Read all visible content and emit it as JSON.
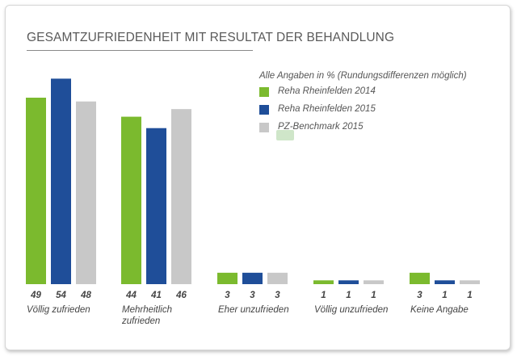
{
  "title": "GESAMTZUFRIEDENHEIT MIT RESULTAT DER BEHANDLUNG",
  "note": "Alle Angaben in % (Rundungsdifferenzen möglich)",
  "colors": {
    "s2014": "#7bba2e",
    "s2015": "#1f4e99",
    "bench": "#c8c8c8"
  },
  "chart_data": {
    "type": "bar",
    "title": "GESAMTZUFRIEDENHEIT MIT RESULTAT DER BEHANDLUNG",
    "xlabel": "",
    "ylabel": "",
    "ylim": [
      0,
      56
    ],
    "grid": false,
    "legend_position": "top-right",
    "categories": [
      [
        "Völlig zufrieden"
      ],
      [
        "Mehrheitlich",
        "zufrieden"
      ],
      [
        "Eher unzufrieden"
      ],
      [
        "Völlig unzufrieden"
      ],
      [
        "Keine Angabe"
      ]
    ],
    "series": [
      {
        "name": "Reha Rheinfelden 2014",
        "color": "#7bba2e",
        "values": [
          49,
          44,
          3,
          1,
          3
        ]
      },
      {
        "name": "Reha Rheinfelden 2015",
        "color": "#1f4e99",
        "values": [
          54,
          41,
          3,
          1,
          1
        ]
      },
      {
        "name": "PZ-Benchmark 2015",
        "color": "#c8c8c8",
        "values": [
          48,
          46,
          3,
          1,
          1
        ]
      }
    ]
  }
}
